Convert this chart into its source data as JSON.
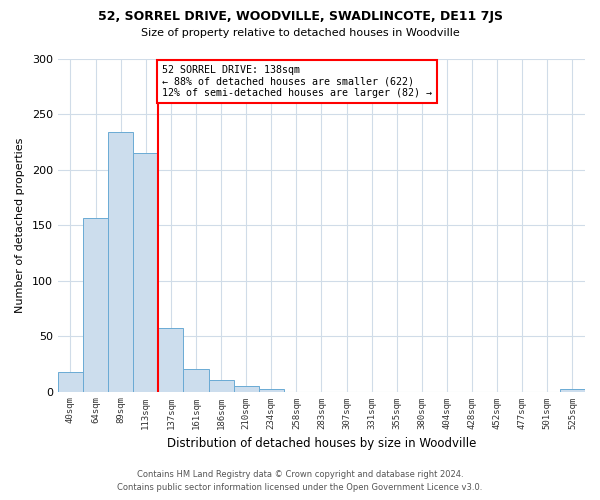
{
  "title": "52, SORREL DRIVE, WOODVILLE, SWADLINCOTE, DE11 7JS",
  "subtitle": "Size of property relative to detached houses in Woodville",
  "xlabel": "Distribution of detached houses by size in Woodville",
  "ylabel": "Number of detached properties",
  "bar_color": "#ccdded",
  "bar_edge_color": "#6aaad4",
  "bin_labels": [
    "40sqm",
    "64sqm",
    "89sqm",
    "113sqm",
    "137sqm",
    "161sqm",
    "186sqm",
    "210sqm",
    "234sqm",
    "258sqm",
    "283sqm",
    "307sqm",
    "331sqm",
    "355sqm",
    "380sqm",
    "404sqm",
    "428sqm",
    "452sqm",
    "477sqm",
    "501sqm",
    "525sqm"
  ],
  "bar_heights": [
    18,
    157,
    234,
    215,
    57,
    20,
    10,
    5,
    2,
    0,
    0,
    0,
    0,
    0,
    0,
    0,
    0,
    0,
    0,
    0,
    2
  ],
  "ylim": [
    0,
    300
  ],
  "yticks": [
    0,
    50,
    100,
    150,
    200,
    250,
    300
  ],
  "red_line_bin_index": 4,
  "annotation_title": "52 SORREL DRIVE: 138sqm",
  "annotation_line1": "← 88% of detached houses are smaller (622)",
  "annotation_line2": "12% of semi-detached houses are larger (82) →",
  "footer_line1": "Contains HM Land Registry data © Crown copyright and database right 2024.",
  "footer_line2": "Contains public sector information licensed under the Open Government Licence v3.0.",
  "background_color": "#ffffff",
  "grid_color": "#d0dce8"
}
